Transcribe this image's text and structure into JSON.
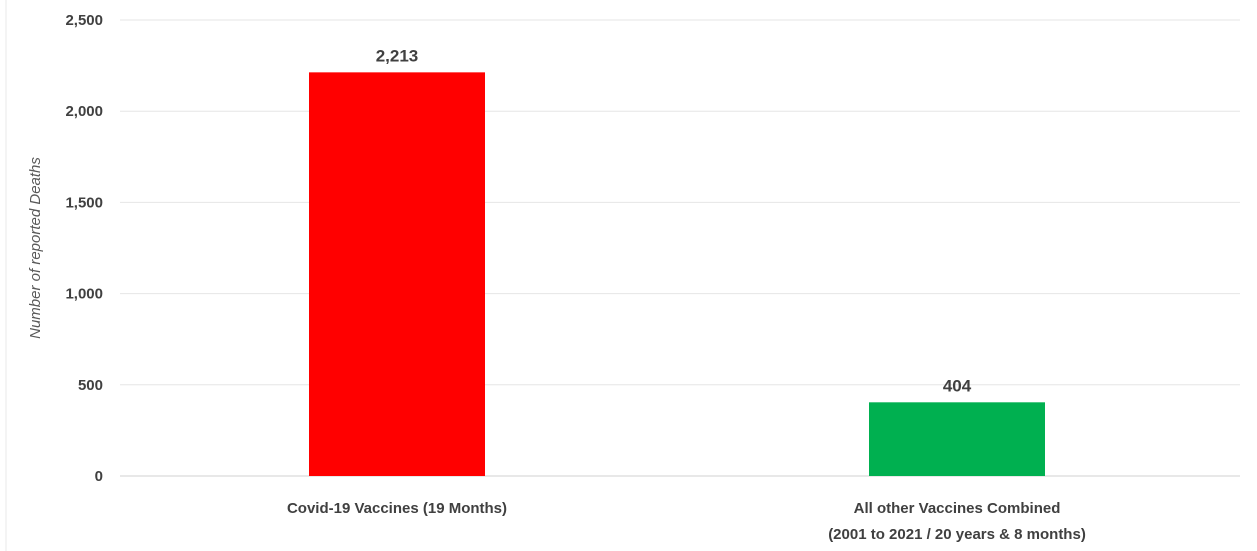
{
  "chart_data": {
    "type": "bar",
    "title": "",
    "xlabel": "",
    "ylabel": "Number of reported Deaths",
    "ylim": [
      0,
      2500
    ],
    "yticks": [
      0,
      500,
      1000,
      1500,
      2000,
      2500
    ],
    "ytick_labels": [
      "0",
      "500",
      "1,000",
      "1,500",
      "2,000",
      "2,500"
    ],
    "grid": true,
    "legend": "none",
    "categories": [
      [
        "Covid-19 Vaccines (19 Months)"
      ],
      [
        "All other Vaccines Combined",
        "(2001 to 2021 / 20 years & 8 months)"
      ]
    ],
    "values": [
      2213,
      404
    ],
    "value_labels": [
      "2,213",
      "404"
    ],
    "colors": [
      "#ff0000",
      "#00b050"
    ]
  }
}
